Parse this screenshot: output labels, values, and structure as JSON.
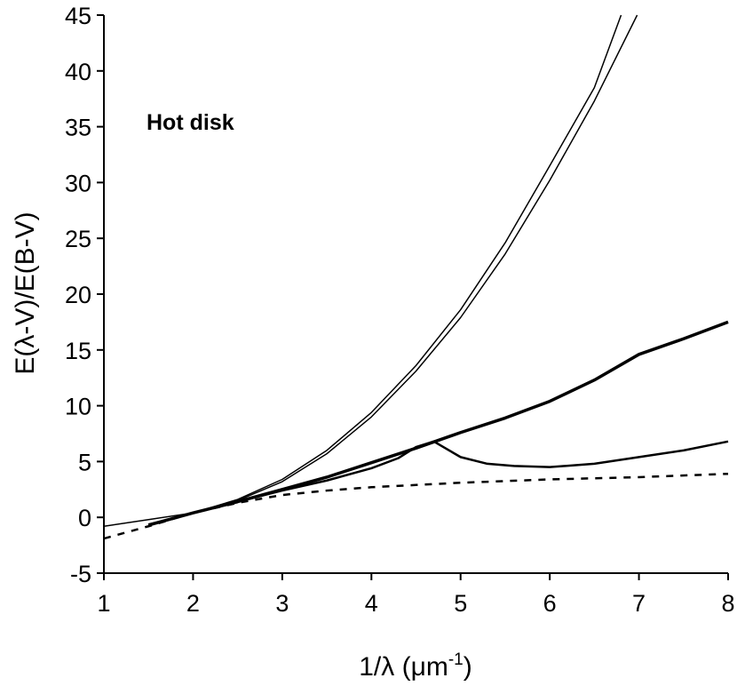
{
  "chart_data": {
    "type": "line",
    "annotation": "Hot disk",
    "ylabel": "E(λ-V)/E(B-V)",
    "xlabel": [
      "1/λ (μm",
      "-1",
      ")"
    ],
    "xlim": [
      1,
      8
    ],
    "xticks": [
      1,
      2,
      3,
      4,
      5,
      6,
      7,
      8
    ],
    "ylim": [
      -5,
      45
    ],
    "yticks": [
      -5,
      0,
      5,
      10,
      15,
      20,
      25,
      30,
      35,
      40,
      45
    ],
    "grid": false,
    "series": [
      {
        "color": "#000000",
        "width": 1.5,
        "dash": false,
        "x": [
          1,
          1.5,
          2,
          2.5,
          3,
          3.5,
          4,
          4.5,
          5,
          5.5,
          6,
          6.5,
          6.8
        ],
        "values": [
          -0.8,
          -0.2,
          0.4,
          1.6,
          3.4,
          6.0,
          9.4,
          13.6,
          18.6,
          24.6,
          31.5,
          38.5,
          45
        ]
      },
      {
        "color": "#000000",
        "width": 1.5,
        "dash": false,
        "x": [
          1.5,
          2,
          2.5,
          3,
          3.5,
          4,
          4.5,
          5,
          5.5,
          6,
          6.5,
          6.98
        ],
        "values": [
          -0.6,
          0.4,
          1.5,
          3.2,
          5.7,
          9.0,
          13.1,
          17.9,
          23.6,
          30.2,
          37.3,
          45
        ]
      },
      {
        "color": "#000000",
        "width": 3.5,
        "dash": false,
        "x": [
          1.5,
          2,
          2.5,
          3,
          3.5,
          4,
          4.5,
          5,
          5.5,
          6,
          6.5,
          7,
          7.5,
          8
        ],
        "values": [
          -0.7,
          0.4,
          1.4,
          2.5,
          3.6,
          4.9,
          6.2,
          7.6,
          8.9,
          10.4,
          12.3,
          14.6,
          16.0,
          17.5
        ]
      },
      {
        "color": "#000000",
        "width": 2.5,
        "dash": false,
        "x": [
          1.5,
          2,
          2.5,
          3,
          3.5,
          4,
          4.3,
          4.5,
          4.7,
          5,
          5.3,
          5.6,
          6,
          6.5,
          7,
          7.5,
          8
        ],
        "values": [
          -0.7,
          0.4,
          1.4,
          2.4,
          3.3,
          4.4,
          5.3,
          6.3,
          6.8,
          5.4,
          4.8,
          4.6,
          4.5,
          4.8,
          5.4,
          6.0,
          6.8
        ]
      },
      {
        "color": "#000000",
        "width": 2.5,
        "dash": true,
        "x": [
          1,
          1.5,
          2,
          2.5,
          3,
          3.5,
          4,
          5,
          6,
          7,
          8
        ],
        "values": [
          -1.9,
          -0.8,
          0.4,
          1.3,
          2.0,
          2.4,
          2.7,
          3.1,
          3.4,
          3.6,
          3.9
        ]
      }
    ]
  }
}
